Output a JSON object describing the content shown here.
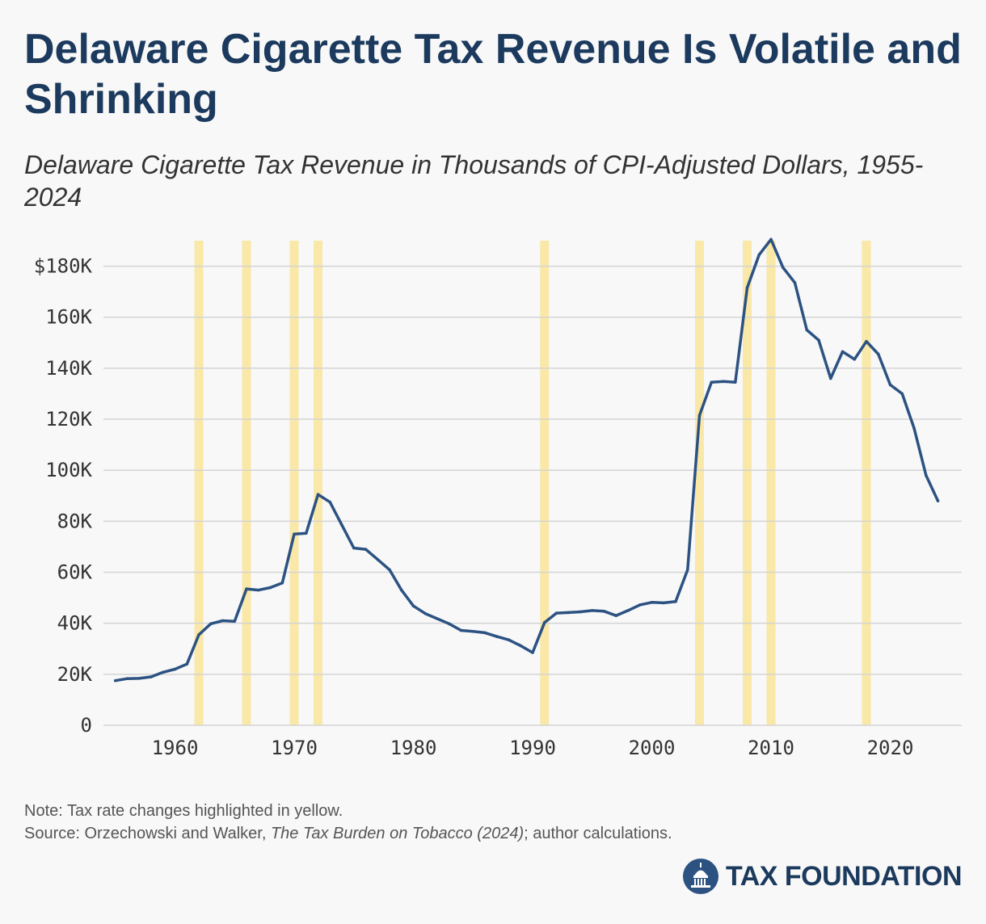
{
  "title": "Delaware Cigarette Tax Revenue Is Volatile and Shrinking",
  "subtitle": "Delaware Cigarette Tax Revenue in Thousands of CPI-Adjusted Dollars, 1955-2024",
  "note": "Note: Tax rate changes highlighted in yellow.",
  "source": {
    "prefix": "Source: Orzechowski and Walker, ",
    "work": "The Tax Burden on Tobacco (2024)",
    "suffix": "; author calculations."
  },
  "brand": "TAX FOUNDATION",
  "colors": {
    "line": "#2c5282",
    "highlight": "#f9e8a7",
    "grid": "#d4d4d4",
    "title": "#1c3a5e"
  },
  "chart_data": {
    "type": "line",
    "title": "Delaware Cigarette Tax Revenue in Thousands of CPI-Adjusted Dollars, 1955-2024",
    "xlabel": "",
    "ylabel": "",
    "xlim": [
      1954,
      2026
    ],
    "ylim": [
      0,
      190
    ],
    "grid": true,
    "yticks": [
      {
        "value": 0,
        "label": "0"
      },
      {
        "value": 20,
        "label": "20K"
      },
      {
        "value": 40,
        "label": "40K"
      },
      {
        "value": 60,
        "label": "60K"
      },
      {
        "value": 80,
        "label": "80K"
      },
      {
        "value": 100,
        "label": "100K"
      },
      {
        "value": 120,
        "label": "120K"
      },
      {
        "value": 140,
        "label": "140K"
      },
      {
        "value": 160,
        "label": "160K"
      },
      {
        "value": 180,
        "label": "$180K"
      }
    ],
    "xticks": [
      {
        "value": 1960,
        "label": "1960"
      },
      {
        "value": 1970,
        "label": "1970"
      },
      {
        "value": 1980,
        "label": "1980"
      },
      {
        "value": 1990,
        "label": "1990"
      },
      {
        "value": 2000,
        "label": "2000"
      },
      {
        "value": 2010,
        "label": "2010"
      },
      {
        "value": 2020,
        "label": "2020"
      }
    ],
    "highlighted_years": [
      1962,
      1966,
      1970,
      1972,
      1991,
      2004,
      2008,
      2010,
      2018
    ],
    "series": [
      {
        "x": [
          1955,
          1956,
          1957,
          1958,
          1959,
          1960,
          1961,
          1962,
          1963,
          1964,
          1965,
          1966,
          1967,
          1968,
          1969,
          1970,
          1971,
          1972,
          1973,
          1974,
          1975,
          1976,
          1977,
          1978,
          1979,
          1980,
          1981,
          1982,
          1983,
          1984,
          1985,
          1986,
          1987,
          1988,
          1989,
          1990,
          1991,
          1992,
          1993,
          1994,
          1995,
          1996,
          1997,
          1998,
          1999,
          2000,
          2001,
          2002,
          2003,
          2004,
          2005,
          2006,
          2007,
          2008,
          2009,
          2010,
          2011,
          2012,
          2013,
          2014,
          2015,
          2016,
          2017,
          2018,
          2019,
          2020,
          2021,
          2022,
          2023,
          2024
        ],
        "values": [
          17.5,
          18.3,
          18.4,
          19,
          20.8,
          22,
          24,
          35.5,
          39.8,
          41,
          40.8,
          53.5,
          53,
          54,
          55.8,
          75,
          75.3,
          90.5,
          87.5,
          78.5,
          69.5,
          69,
          65,
          61,
          53,
          46.8,
          43.8,
          41.8,
          39.8,
          37.2,
          36.8,
          36.3,
          34.8,
          33.5,
          31.2,
          28.5,
          40.3,
          44,
          44.2,
          44.5,
          45,
          44.7,
          43,
          45,
          47.2,
          48.2,
          48,
          48.5,
          61,
          121.5,
          134.5,
          134.8,
          134.5,
          171.5,
          184.5,
          190.5,
          179.5,
          173.5,
          155,
          151,
          136,
          146.5,
          143.5,
          150.5,
          145.5,
          133.5,
          130,
          116.5,
          98,
          88
        ]
      }
    ]
  }
}
